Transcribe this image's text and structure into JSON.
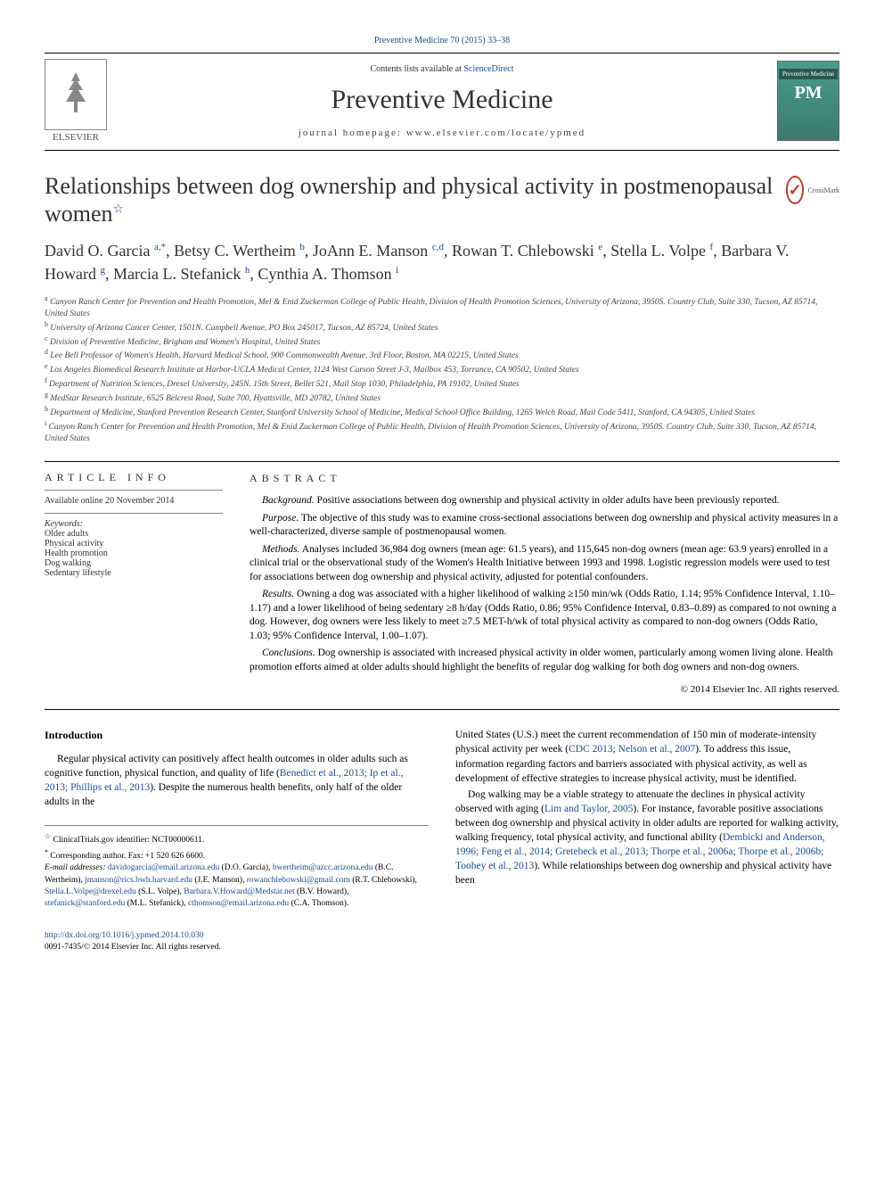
{
  "journal_ref": "Preventive Medicine 70 (2015) 33–38",
  "contents_line_prefix": "Contents lists available at ",
  "contents_line_link": "ScienceDirect",
  "journal_title": "Preventive Medicine",
  "journal_homepage_label": "journal homepage: ",
  "journal_homepage": "www.elsevier.com/locate/ypmed",
  "elsevier": "ELSEVIER",
  "pm_badge_small": "Preventive Medicine",
  "pm_badge_big": "PM",
  "crossmark": "CrossMark",
  "article_title": "Relationships between dog ownership and physical activity in postmenopausal women",
  "title_star": "☆",
  "authors_html": [
    {
      "name": "David O. Garcia ",
      "sup": "a,*"
    },
    {
      "name": ", Betsy C. Wertheim ",
      "sup": "b"
    },
    {
      "name": ", JoAnn E. Manson ",
      "sup": "c,d"
    },
    {
      "name": ", Rowan T. Chlebowski ",
      "sup": "e"
    },
    {
      "name": ", Stella L. Volpe ",
      "sup": "f"
    },
    {
      "name": ", Barbara V. Howard ",
      "sup": "g"
    },
    {
      "name": ", Marcia L. Stefanick ",
      "sup": "h"
    },
    {
      "name": ", Cynthia A. Thomson ",
      "sup": "i"
    }
  ],
  "affiliations": [
    {
      "sup": "a",
      "text": " Canyon Ranch Center for Prevention and Health Promotion, Mel & Enid Zuckerman College of Public Health, Division of Health Promotion Sciences, University of Arizona, 3950S. Country Club, Suite 330, Tucson, AZ 85714, United States"
    },
    {
      "sup": "b",
      "text": " University of Arizona Cancer Center, 1501N. Campbell Avenue, PO Box 245017, Tucson, AZ 85724, United States"
    },
    {
      "sup": "c",
      "text": " Division of Preventive Medicine, Brigham and Women's Hospital, United States"
    },
    {
      "sup": "d",
      "text": " Lee Bell Professor of Women's Health, Harvard Medical School, 900 Commonwealth Avenue, 3rd Floor, Boston, MA 02215, United States"
    },
    {
      "sup": "e",
      "text": " Los Angeles Biomedical Research Institute at Harbor-UCLA Medical Center, 1124 West Carson Street J-3, Mailbox 453, Torrance, CA 90502, United States"
    },
    {
      "sup": "f",
      "text": " Department of Nutrition Sciences, Drexel University, 245N. 15th Street, Bellet 521, Mail Stop 1030, Philadelphia, PA 19102, United States"
    },
    {
      "sup": "g",
      "text": " MedStar Research Institute, 6525 Belcrest Road, Suite 700, Hyattsville, MD 20782, United States"
    },
    {
      "sup": "h",
      "text": " Department of Medicine, Stanford Prevention Research Center, Stanford University School of Medicine, Medical School Office Building, 1265 Welch Road, Mail Code 5411, Stanford, CA 94305, United States"
    },
    {
      "sup": "i",
      "text": " Canyon Ranch Center for Prevention and Health Promotion, Mel & Enid Zuckerman College of Public Health, Division of Health Promotion Sciences, University of Arizona, 3950S. Country Club, Suite 330, Tucson, AZ 85714, United States"
    }
  ],
  "info_heading": "article info",
  "available_online": "Available online 20 November 2014",
  "keywords_label": "Keywords:",
  "keywords": [
    "Older adults",
    "Physical activity",
    "Health promotion",
    "Dog walking",
    "Sedentary lifestyle"
  ],
  "abstract_heading": "abstract",
  "abstract": [
    {
      "label": "Background.",
      "text": " Positive associations between dog ownership and physical activity in older adults have been previously reported."
    },
    {
      "label": "Purpose.",
      "text": " The objective of this study was to examine cross-sectional associations between dog ownership and physical activity measures in a well-characterized, diverse sample of postmenopausal women."
    },
    {
      "label": "Methods.",
      "text": " Analyses included 36,984 dog owners (mean age: 61.5 years), and 115,645 non-dog owners (mean age: 63.9 years) enrolled in a clinical trial or the observational study of the Women's Health Initiative between 1993 and 1998. Logistic regression models were used to test for associations between dog ownership and physical activity, adjusted for potential confounders."
    },
    {
      "label": "Results.",
      "text": " Owning a dog was associated with a higher likelihood of walking ≥150 min/wk (Odds Ratio, 1.14; 95% Confidence Interval, 1.10–1.17) and a lower likelihood of being sedentary ≥8 h/day (Odds Ratio, 0.86; 95% Confidence Interval, 0.83–0.89) as compared to not owning a dog. However, dog owners were less likely to meet ≥7.5 MET-h/wk of total physical activity as compared to non-dog owners (Odds Ratio, 1.03; 95% Confidence Interval, 1.00–1.07)."
    },
    {
      "label": "Conclusions.",
      "text": " Dog ownership is associated with increased physical activity in older women, particularly among women living alone. Health promotion efforts aimed at older adults should highlight the benefits of regular dog walking for both dog owners and non-dog owners."
    }
  ],
  "copyright": "© 2014 Elsevier Inc. All rights reserved.",
  "intro_heading": "Introduction",
  "intro_left_1_pre": "Regular physical activity can positively affect health outcomes in older adults such as cognitive function, physical function, and quality of life (",
  "intro_left_1_link": "Benedict et al., 2013; Ip et al., 2013; Phillips et al., 2013",
  "intro_left_1_post": "). Despite the numerous health benefits, only half of the older adults in the",
  "intro_right_1_pre": "United States (U.S.) meet the current recommendation of 150 min of moderate-intensity physical activity per week (",
  "intro_right_1_link": "CDC 2013; Nelson et al., 2007",
  "intro_right_1_post": "). To address this issue, information regarding factors and barriers associated with physical activity, as well as development of effective strategies to increase physical activity, must be identified.",
  "intro_right_2_pre": "Dog walking may be a viable strategy to attenuate the declines in physical activity observed with aging (",
  "intro_right_2_link1": "Lim and Taylor, 2005",
  "intro_right_2_mid": "). For instance, favorable positive associations between dog ownership and physical activity in older adults are reported for walking activity, walking frequency, total physical activity, and functional ability (",
  "intro_right_2_link2": "Dembicki and Anderson, 1996; Feng et al., 2014; Gretebeck et al., 2013; Thorpe et al., 2006a; Thorpe et al., 2006b; Toohey et al., 2013",
  "intro_right_2_post": "). While relationships between dog ownership and physical activity have been",
  "footnote_trial": " ClinicalTrials.gov identifier: NCT00000611.",
  "footnote_corr": " Corresponding author. Fax: +1 520 626 6600.",
  "footnote_email_label": "E-mail addresses: ",
  "emails": [
    {
      "addr": "davidogarcia@email.arizona.edu",
      "who": " (D.O. Garcia), "
    },
    {
      "addr": "bwertheim@azcc.arizona.edu",
      "who": " (B.C. Wertheim), "
    },
    {
      "addr": "jmanson@rics.bwh.harvard.edu",
      "who": " (J.E. Manson), "
    },
    {
      "addr": "rowanchlebowski@gmail.com",
      "who": " (R.T. Chlebowski), "
    },
    {
      "addr": "Stella.L.Volpe@drexel.edu",
      "who": " (S.L. Volpe), "
    },
    {
      "addr": "Barbara.V.Howard@Medstar.net",
      "who": " (B.V. Howard), "
    },
    {
      "addr": "stefanick@stanford.edu",
      "who": " (M.L. Stefanick), "
    },
    {
      "addr": "cthomson@email.arizona.edu",
      "who": " (C.A. Thomson)."
    }
  ],
  "doi": "http://dx.doi.org/10.1016/j.ypmed.2014.10.030",
  "issn_line": "0091-7435/© 2014 Elsevier Inc. All rights reserved.",
  "colors": {
    "link": "#1a4d8f",
    "text": "#000000",
    "muted": "#444444"
  }
}
